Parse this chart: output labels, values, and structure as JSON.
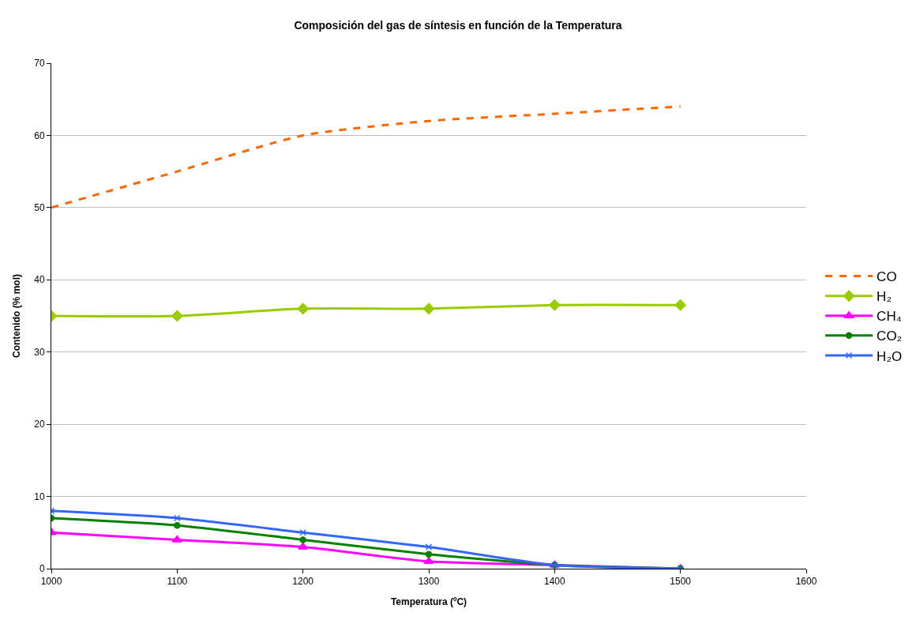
{
  "chart_data": {
    "type": "line",
    "title": "Composición del gas de síntesis en función de la Temperatura",
    "xlabel": "Temperatura (ºC)",
    "ylabel": "Contenido (% mol)",
    "x": [
      1000,
      1100,
      1200,
      1300,
      1400,
      1500
    ],
    "xlim": [
      1000,
      1600
    ],
    "xticks": [
      1000,
      1100,
      1200,
      1300,
      1400,
      1500,
      1600
    ],
    "ylim": [
      0,
      70
    ],
    "yticks": [
      0,
      10,
      20,
      30,
      40,
      50,
      60,
      70
    ],
    "grid": "y",
    "legend": "right",
    "series": [
      {
        "name": "CO",
        "color": "#ff6600",
        "values": [
          50,
          55,
          60,
          62,
          63,
          64
        ],
        "marker": "none",
        "line_style": "dashed"
      },
      {
        "name": "H₂",
        "color": "#99cc00",
        "values": [
          35,
          35,
          36,
          36,
          36.5,
          36.5
        ],
        "marker": "diamond",
        "line_style": "solid"
      },
      {
        "name": "CH₄",
        "color": "#ff00ff",
        "values": [
          5,
          4,
          3,
          1,
          0.5,
          0
        ],
        "marker": "triangle",
        "line_style": "solid"
      },
      {
        "name": "CO₂",
        "color": "#008000",
        "values": [
          7,
          6,
          4,
          2,
          0.5,
          0
        ],
        "marker": "circle",
        "line_style": "solid"
      },
      {
        "name": "H₂O",
        "color": "#3366ff",
        "values": [
          8,
          7,
          5,
          3,
          0.5,
          0
        ],
        "marker": "cross",
        "line_style": "solid"
      }
    ]
  }
}
